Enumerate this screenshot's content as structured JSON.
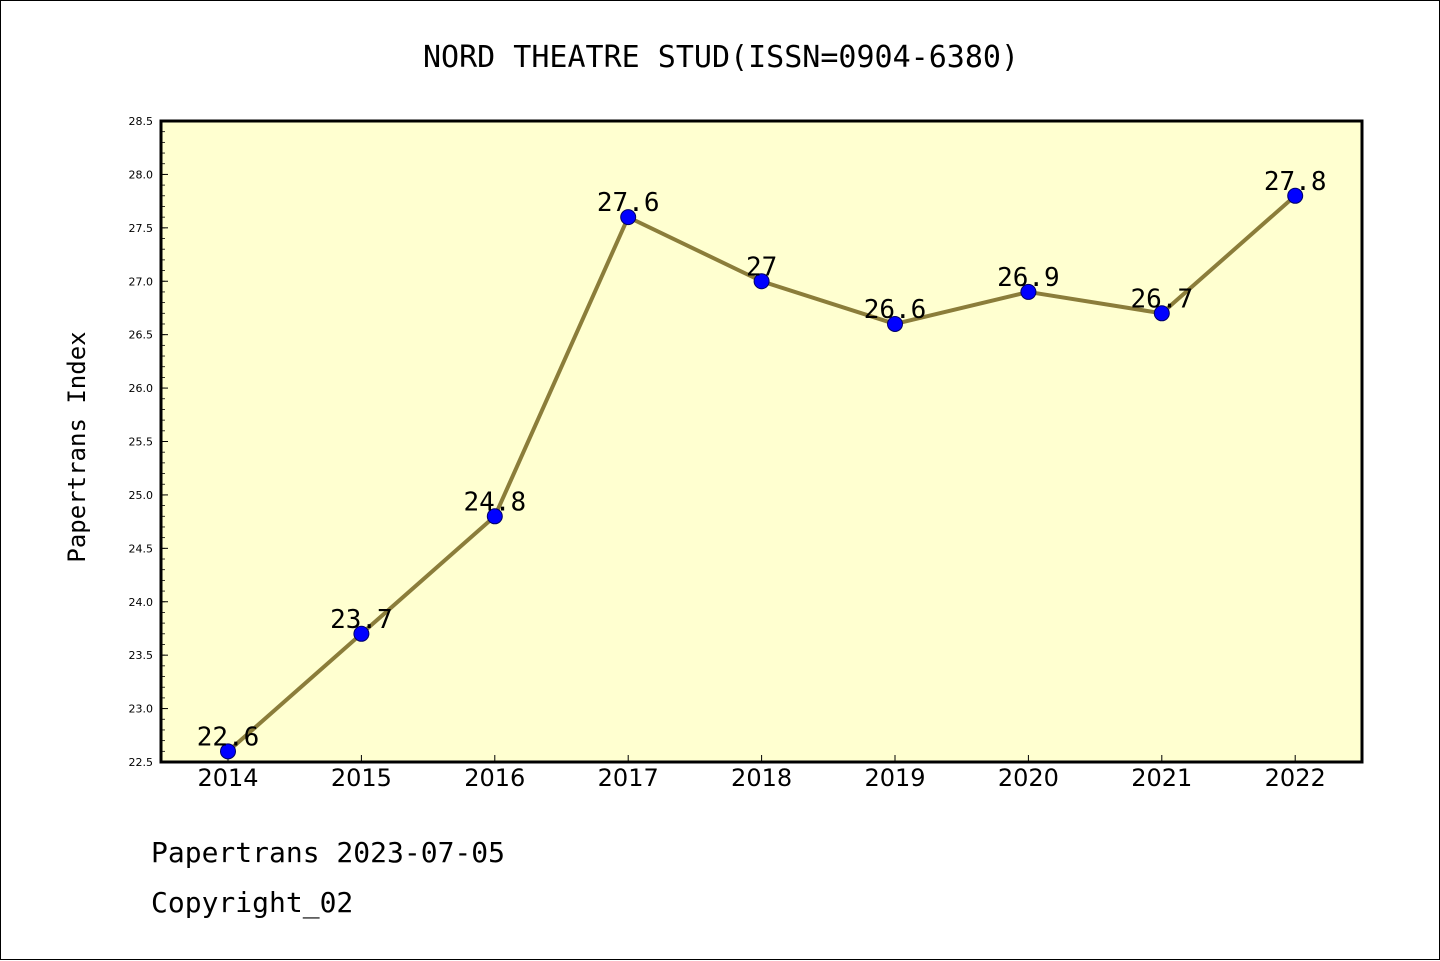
{
  "chart_data": {
    "type": "line",
    "title": "NORD THEATRE STUD(ISSN=0904-6380)",
    "ylabel": "Papertrans Index",
    "xlabel": "",
    "categories": [
      "2014",
      "2015",
      "2016",
      "2017",
      "2018",
      "2019",
      "2020",
      "2021",
      "2022"
    ],
    "series": [
      {
        "values": [
          22.6,
          23.7,
          24.8,
          27.6,
          27.0,
          26.6,
          26.9,
          26.7,
          27.8
        ],
        "labels": [
          "22.6",
          "23.7",
          "24.8",
          "27.6",
          "27",
          "26.6",
          "26.9",
          "26.7",
          "27.8"
        ]
      }
    ],
    "ylim": [
      22.5,
      28.5
    ],
    "yticks": [
      "22.5",
      "23.0",
      "23.5",
      "24.0",
      "24.5",
      "25.0",
      "25.5",
      "26.0",
      "26.5",
      "27.0",
      "27.5",
      "28.0",
      "28.5"
    ],
    "grid": false,
    "legend": "none"
  },
  "footer": {
    "line1": "Papertrans 2023-07-05",
    "line2": "Copyright_02"
  },
  "colors": {
    "plot_background": "#ffffd0",
    "line": "#8b7d3a",
    "marker": "#0000ff",
    "axis": "#000000"
  }
}
